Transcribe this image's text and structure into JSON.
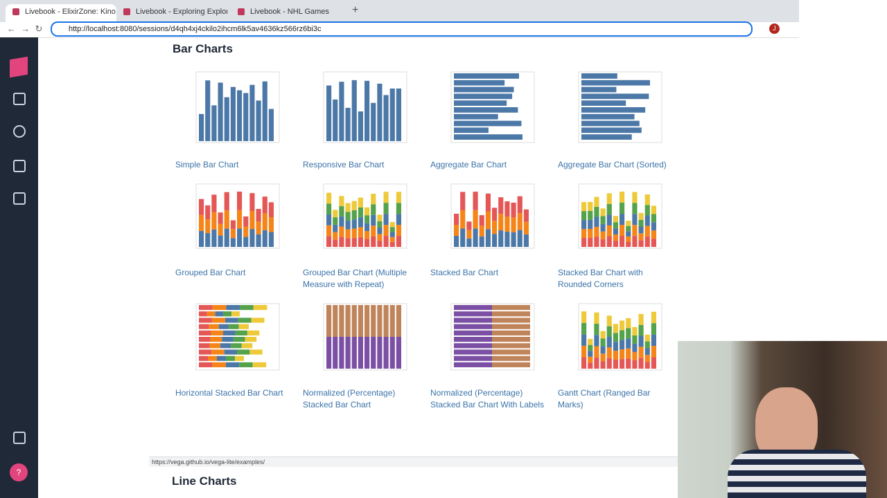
{
  "browser": {
    "tabs": [
      "Livebook - ElixirZone: Kino, Na",
      "Livebook - Exploring Explorer",
      "Livebook - NHL Games"
    ],
    "url": "http://localhost:8080/sessions/d4qh4xj4ckilo2ihcm6lk5av4636kz566rz6bi3c",
    "avatar": "J",
    "status_url": "https://vega.github.io/vega-lite/examples/"
  },
  "sidebar": {
    "help": "?"
  },
  "section": {
    "title": "Bar Charts",
    "items": [
      "Simple Bar Chart",
      "Responsive Bar Chart",
      "Aggregate Bar Chart",
      "Aggregate Bar Chart (Sorted)",
      "Grouped Bar Chart",
      "Grouped Bar Chart (Multiple Measure with Repeat)",
      "Stacked Bar Chart",
      "Stacked Bar Chart with Rounded Corners",
      "Horizontal Stacked Bar Chart",
      "Normalized (Percentage) Stacked Bar Chart",
      "Normalized (Percentage) Stacked Bar Chart With Labels",
      "Gantt Chart (Ranged Bar Marks)"
    ]
  },
  "next_section": {
    "title": "Line Charts"
  }
}
